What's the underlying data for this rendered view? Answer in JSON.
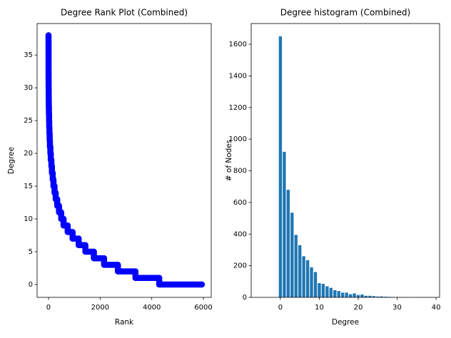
{
  "chart_data": [
    {
      "type": "line",
      "title": "Degree Rank Plot (Combined)",
      "xlabel": "Rank",
      "ylabel": "Degree",
      "color": "#0000ff",
      "marker": "o",
      "x": [
        0,
        1,
        2,
        3,
        4,
        5,
        6,
        7,
        8,
        9,
        11,
        12,
        15,
        16,
        21,
        22,
        26,
        27,
        34,
        35,
        44,
        45,
        54,
        55,
        72,
        73,
        87,
        88,
        112,
        113,
        132,
        133,
        162,
        163,
        192,
        193,
        232,
        233,
        277,
        278,
        337,
        338,
        407,
        408,
        492,
        493,
        582,
        583,
        742,
        743,
        932,
        933,
        1167,
        1168,
        1427,
        1428,
        1757,
        1758,
        2152,
        2153,
        2687,
        2688,
        3367,
        3368,
        4287,
        4288,
        5937
      ],
      "values": [
        38,
        37,
        35,
        32,
        31,
        30,
        30,
        29,
        29,
        28,
        28,
        27,
        27,
        26,
        26,
        25,
        25,
        24,
        24,
        23,
        23,
        22,
        22,
        21,
        21,
        20,
        20,
        19,
        19,
        18,
        18,
        17,
        17,
        16,
        16,
        15,
        15,
        14,
        14,
        13,
        13,
        12,
        12,
        11,
        11,
        10,
        10,
        9,
        9,
        8,
        8,
        7,
        7,
        6,
        6,
        5,
        5,
        4,
        4,
        3,
        3,
        2,
        2,
        1,
        1,
        0,
        0
      ],
      "xlim": [
        -442,
        6303
      ],
      "xticks": [
        0,
        2000,
        4000,
        6000
      ],
      "ylim": [
        -1.96,
        39.8
      ],
      "yticks": [
        0,
        5,
        10,
        15,
        20,
        25,
        30,
        35
      ]
    },
    {
      "type": "bar",
      "title": "Degree histogram (Combined)",
      "xlabel": "Degree",
      "ylabel": "# of Nodes",
      "color": "#1f77b4",
      "bar_width": 0.8,
      "x": [
        0,
        1,
        2,
        3,
        4,
        5,
        6,
        7,
        8,
        9,
        10,
        11,
        12,
        13,
        14,
        15,
        16,
        17,
        18,
        19,
        20,
        21,
        22,
        23,
        24,
        25,
        26,
        27,
        28,
        29,
        30,
        31,
        32,
        35,
        37,
        38
      ],
      "values": [
        1650,
        920,
        680,
        535,
        395,
        330,
        260,
        235,
        190,
        160,
        90,
        85,
        70,
        60,
        45,
        40,
        30,
        30,
        20,
        25,
        15,
        18,
        10,
        10,
        8,
        5,
        6,
        4,
        3,
        2,
        2,
        1,
        1,
        1,
        1,
        1
      ],
      "xlim": [
        -7.5,
        40.9
      ],
      "xticks": [
        0,
        10,
        20,
        30,
        40
      ],
      "ylim": [
        0,
        1731
      ],
      "yticks": [
        0,
        200,
        400,
        600,
        800,
        1000,
        1200,
        1400,
        1600
      ]
    }
  ]
}
